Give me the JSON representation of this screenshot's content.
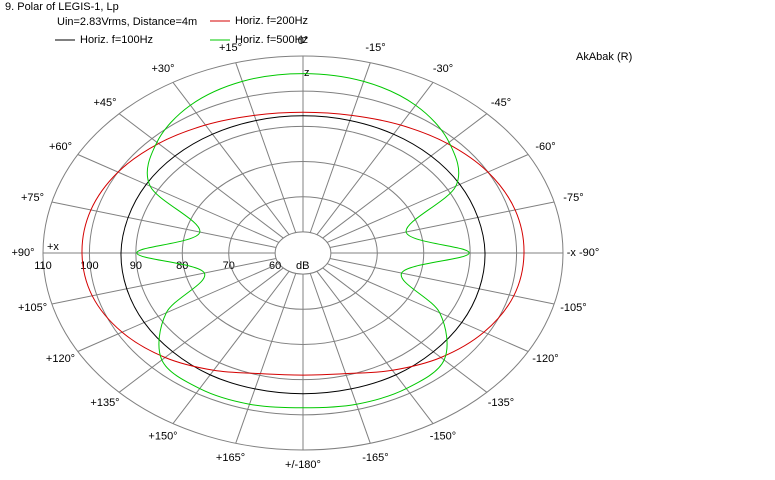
{
  "chart_data": {
    "type": "polar",
    "title": "9. Polar of LEGIS-1, Lp",
    "subtitle": "Uin=2.83Vrms, Distance=4m",
    "annotation": "AkAbak (R)",
    "axis_labels": {
      "left": "+x",
      "right": "-x",
      "top": "z",
      "unit": "dB"
    },
    "rlim": [
      54,
      110
    ],
    "rticks": [
      110,
      100,
      90,
      80,
      70,
      60
    ],
    "angle_ticks": [
      {
        "value": 0,
        "label": "0°"
      },
      {
        "value": -15,
        "label": "-15°"
      },
      {
        "value": -30,
        "label": "-30°"
      },
      {
        "value": -45,
        "label": "-45°"
      },
      {
        "value": -60,
        "label": "-60°"
      },
      {
        "value": -75,
        "label": "-75°"
      },
      {
        "value": -90,
        "label": "-x  -90°"
      },
      {
        "value": -105,
        "label": "-105°"
      },
      {
        "value": -120,
        "label": "-120°"
      },
      {
        "value": -135,
        "label": "-135°"
      },
      {
        "value": -150,
        "label": "-150°"
      },
      {
        "value": -165,
        "label": "-165°"
      },
      {
        "value": 180,
        "label": "+/-180°"
      },
      {
        "value": 165,
        "label": "+165°"
      },
      {
        "value": 150,
        "label": "+150°"
      },
      {
        "value": 135,
        "label": "+135°"
      },
      {
        "value": 120,
        "label": "+120°"
      },
      {
        "value": 105,
        "label": "+105°"
      },
      {
        "value": 90,
        "label": "+90°"
      },
      {
        "value": 75,
        "label": "+75°"
      },
      {
        "value": 60,
        "label": "+60°"
      },
      {
        "value": 45,
        "label": "+45°"
      },
      {
        "value": 30,
        "label": "+30°"
      },
      {
        "value": 15,
        "label": "+15°"
      }
    ],
    "series": [
      {
        "name": "Horiz. f=100Hz",
        "color": "#000000",
        "values": [
          93,
          93,
          93,
          93,
          93,
          93,
          93.2,
          93.3,
          93.5,
          93.7,
          94,
          94,
          94,
          94,
          94,
          93.7,
          93.5,
          93.3,
          93.2,
          93,
          93,
          93,
          93,
          93
        ]
      },
      {
        "name": "Horiz. f=200Hz",
        "color": "#d40000",
        "values": [
          94,
          94.5,
          96,
          98,
          100,
          101.3,
          101.6,
          101,
          99,
          96,
          92.5,
          89.5,
          88.7,
          89.5,
          92.5,
          96,
          99,
          101,
          101.6,
          101.3,
          100,
          98,
          96,
          94.5
        ]
      },
      {
        "name": "Horiz. f=500Hz",
        "color": "#00c800",
        "values": [
          105,
          104.5,
          102.5,
          98.5,
          92,
          77,
          89.8,
          76,
          88,
          97,
          98.5,
          98.5,
          98,
          98.5,
          98.5,
          97,
          88,
          76,
          89.8,
          77,
          92,
          98.5,
          102.5,
          104.5
        ]
      }
    ]
  }
}
